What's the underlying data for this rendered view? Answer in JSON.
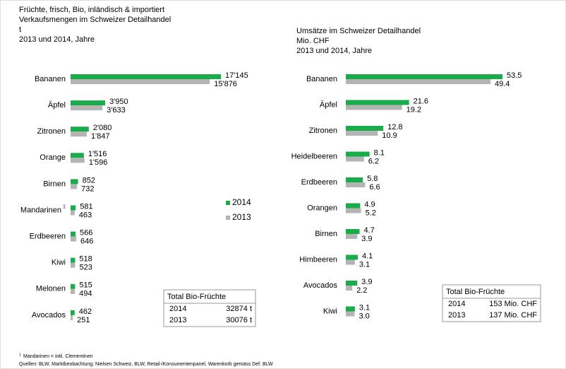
{
  "chart_data": [
    {
      "type": "bar",
      "orientation": "horizontal",
      "title_lines": [
        "Früchte, frisch, Bio, inländisch & importiert",
        "Verkaufsmengen im Schweizer Detailhandel",
        "t",
        "2013 und 2014, Jahre"
      ],
      "categories": [
        "Bananen",
        "Äpfel",
        "Zitronen",
        "Orange",
        "Birnen",
        "Mandarinen",
        "Erdbeeren",
        "Kiwi",
        "Melonen",
        "Avocados"
      ],
      "category_footnotes": [
        null,
        null,
        null,
        null,
        null,
        "1",
        null,
        null,
        null,
        null
      ],
      "series": [
        {
          "name": "2014",
          "color": "#1aab4b",
          "values": [
            17145,
            3950,
            2080,
            1516,
            852,
            581,
            566,
            518,
            515,
            462
          ],
          "value_labels": [
            "17'145",
            "3'950",
            "2'080",
            "1'516",
            "852",
            "581",
            "566",
            "518",
            "515",
            "462"
          ]
        },
        {
          "name": "2013",
          "color": "#b4b4b4",
          "values": [
            15876,
            3633,
            1847,
            1596,
            732,
            463,
            646,
            523,
            494,
            251
          ],
          "value_labels": [
            "15'876",
            "3'633",
            "1'847",
            "1'596",
            "732",
            "463",
            "646",
            "523",
            "494",
            "251"
          ]
        }
      ],
      "legend": true,
      "summary_table": {
        "header": "Total Bio-Früchte",
        "rows": [
          [
            "2014",
            "32874 t"
          ],
          [
            "2013",
            "30076 t"
          ]
        ]
      }
    },
    {
      "type": "bar",
      "orientation": "horizontal",
      "title_lines": [
        "Umsätze im Schweizer Detailhandel",
        "Mio. CHF",
        "2013 und 2014, Jahre"
      ],
      "categories": [
        "Bananen",
        "Äpfel",
        "Zitronen",
        "Heidelbeeren",
        "Erdbeeren",
        "Orangen",
        "Birnen",
        "Himbeeren",
        "Avocados",
        "Kiwi"
      ],
      "series": [
        {
          "name": "2014",
          "color": "#1aab4b",
          "values": [
            53.5,
            21.6,
            12.8,
            8.1,
            5.8,
            4.9,
            4.7,
            4.1,
            3.9,
            3.1
          ],
          "value_labels": [
            "53.5",
            "21.6",
            "12.8",
            "8.1",
            "5.8",
            "4.9",
            "4.7",
            "4.1",
            "3.9",
            "3.1"
          ]
        },
        {
          "name": "2013",
          "color": "#b4b4b4",
          "values": [
            49.4,
            19.2,
            10.9,
            6.2,
            6.6,
            5.2,
            3.9,
            3.1,
            2.2,
            3.0
          ],
          "value_labels": [
            "49.4",
            "19.2",
            "10.9",
            "6.2",
            "6.6",
            "5.2",
            "3.9",
            "3.1",
            "2.2",
            "3.0"
          ]
        }
      ],
      "legend": false,
      "summary_table": {
        "header": "Total Bio-Früchte",
        "rows": [
          [
            "2014",
            "153 Mio. CHF"
          ],
          [
            "2013",
            "137 Mio. CHF"
          ]
        ]
      }
    }
  ],
  "footnotes": [
    {
      "marker": "1",
      "text": "Mandarinen = inkl. Clementinen"
    }
  ],
  "sources": "Quellen: BLW, Marktbeobachtung; Nielsen Schweiz, BLW, Retail-/Konsumentenpanel, Warenkorb gemäss Def. BLW"
}
